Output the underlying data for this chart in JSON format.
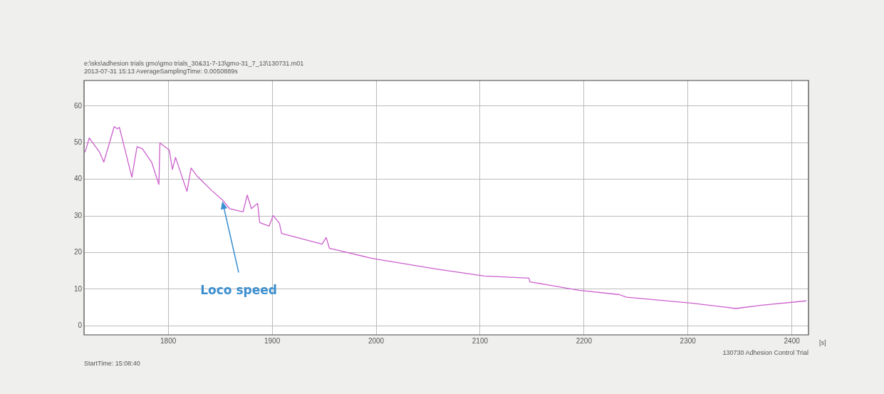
{
  "chart_data": {
    "type": "line",
    "title": "e:\\sks\\adhesion trials gmo\\gmo trials_30&31-7-13\\gmo-31_7_13\\130731.m01",
    "subtitle": "2013-07-31 15:13  AverageSamplingTime: 0.0050889s",
    "xlabel": "[s]",
    "x": [
      1720,
      1724,
      1734,
      1738,
      1744,
      1748,
      1751,
      1753,
      1765,
      1770,
      1775,
      1784,
      1791,
      1792,
      1801,
      1804,
      1807,
      1818,
      1822,
      1828,
      1842,
      1852,
      1859,
      1872,
      1876,
      1880,
      1886,
      1888,
      1897,
      1901,
      1907,
      1909,
      1948,
      1952,
      1955,
      1996,
      2058,
      2104,
      2147,
      2148,
      2195,
      2234,
      2241,
      2303,
      2346,
      2371,
      2414
    ],
    "series": [
      {
        "color": "#cc5fcc",
        "values": [
          47.4,
          51.3,
          47.4,
          44.7,
          50.5,
          54.4,
          53.8,
          54.2,
          40.6,
          48.9,
          48.4,
          44.7,
          38.6,
          49.9,
          48,
          42.7,
          46,
          36.7,
          43.1,
          40.8,
          36.9,
          34.4,
          32,
          31.1,
          35.7,
          32,
          33.4,
          28.2,
          27.2,
          30.1,
          28,
          25.2,
          22.3,
          24.1,
          21.2,
          18.4,
          15.5,
          13.6,
          13,
          12,
          9.7,
          8.5,
          7.8,
          6.2,
          4.7,
          5.6,
          6.8
        ]
      }
    ],
    "xlim": [
      1719,
      2416
    ],
    "xticks": [
      1800,
      1900,
      2000,
      2100,
      2200,
      2300,
      2400
    ],
    "ylim": [
      -2.5,
      67
    ],
    "yticks": [
      0,
      10,
      20,
      30,
      40,
      50,
      60
    ],
    "grid": true,
    "marker": "none",
    "line_style": "solid",
    "annotations": [
      {
        "text": "Loco speed",
        "x": 1852,
        "y": 34
      },
      "StartTime: 15:08:40",
      "130730 Adhesion Control Trial"
    ]
  }
}
